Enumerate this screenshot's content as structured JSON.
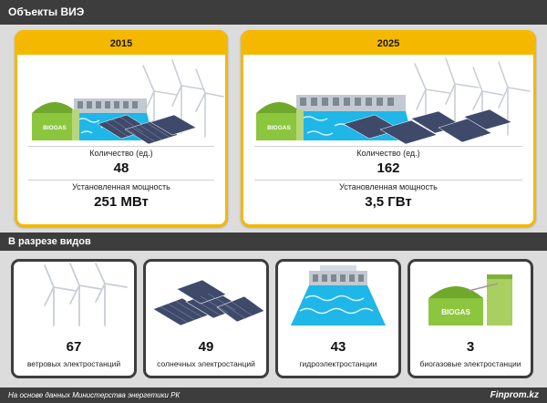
{
  "header": {
    "title": "Объекты ВИЭ"
  },
  "overview": {
    "count_label": "Количество (ед.)",
    "capacity_label": "Установленная мощность",
    "cards": [
      {
        "year": "2015",
        "count": "48",
        "capacity": "251 МВт",
        "biogas_text": "BIOGAS"
      },
      {
        "year": "2025",
        "count": "162",
        "capacity": "3,5 ГВт",
        "biogas_text": "BIOGAS"
      }
    ]
  },
  "breakdown": {
    "title": "В разрезе видов",
    "items": [
      {
        "count": "67",
        "label": "ветровых электростанций",
        "icon": "wind-turbines-icon"
      },
      {
        "count": "49",
        "label": "солнечных электростанций",
        "icon": "solar-panels-icon"
      },
      {
        "count": "43",
        "label": "гидроэлектростанции",
        "icon": "hydro-dam-icon"
      },
      {
        "count": "3",
        "label": "биогазовые электростанции",
        "icon": "biogas-plant-icon",
        "biogas_text": "BIOGAS"
      }
    ]
  },
  "footer": {
    "source": "На основе данных Министерства энергетики РК",
    "brand": "Finprom.kz"
  },
  "colors": {
    "accent": "#f5b800",
    "dark": "#3d3d3d",
    "water": "#1fb6e8",
    "biogas_green": "#8cc63f",
    "panel": "#3f4a6b"
  }
}
